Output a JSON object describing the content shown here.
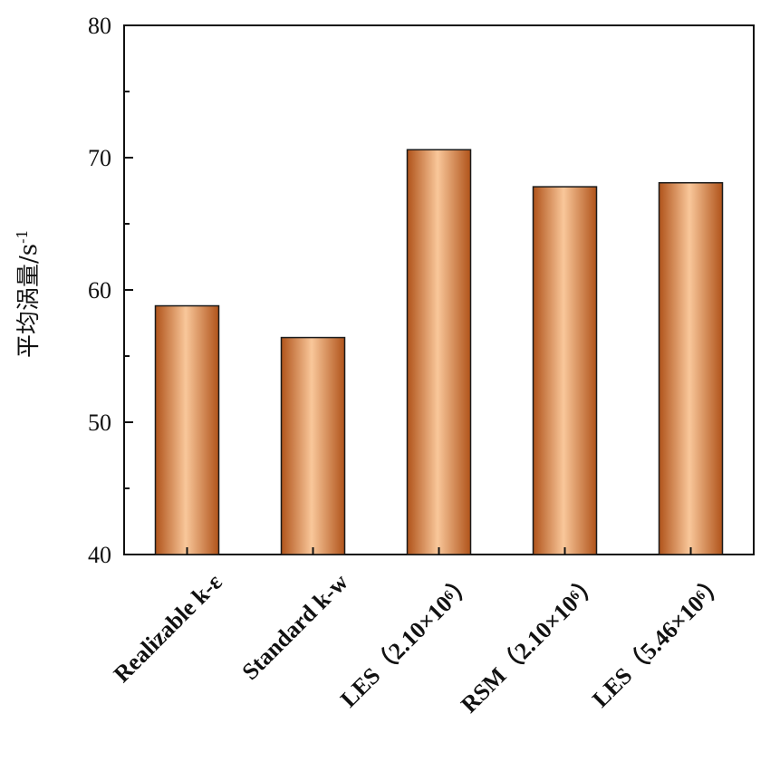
{
  "chart_data": {
    "type": "bar",
    "title": "",
    "xlabel": "",
    "ylabel": "平均涡量/s",
    "ylabel_superscript": "-1",
    "ylim": [
      40,
      80
    ],
    "yticks": [
      "40",
      "50",
      "60",
      "70",
      "80"
    ],
    "grid": false,
    "categories": [
      "Realizable k-ε",
      "Standard k-w",
      "LES（2.10×10⁶）",
      "RSM（2.10×10⁶）",
      "LES（5.46×10⁶）"
    ],
    "values": [
      58.8,
      56.4,
      70.6,
      67.8,
      68.1
    ],
    "colors": {
      "bar_edge": "#b0531a",
      "bar_center": "#f9c79a",
      "bar_outline": "#1a1a1a",
      "axis": "#111111"
    }
  }
}
